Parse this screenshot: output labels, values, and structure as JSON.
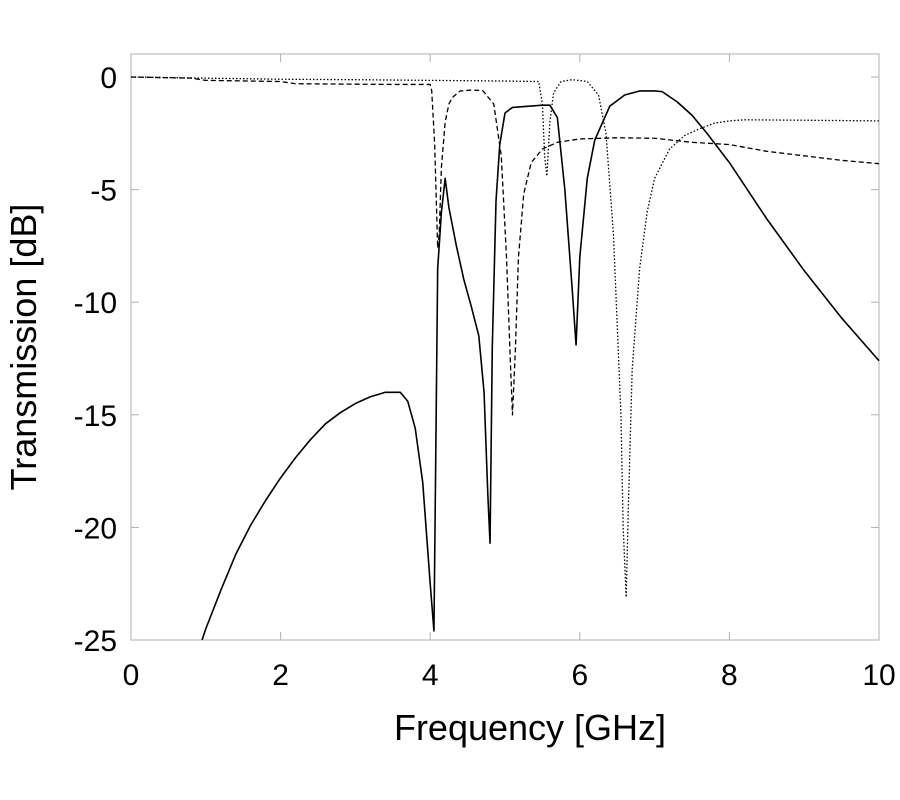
{
  "chart_data": {
    "type": "line",
    "xlabel": "Frequency [GHz]",
    "ylabel": "Transmission [dB]",
    "xlim": [
      0,
      10
    ],
    "ylim": [
      -25,
      1
    ],
    "grid": false,
    "legend": "none",
    "x_ticks": [
      {
        "value": 0,
        "label": "0"
      },
      {
        "value": 2,
        "label": "2"
      },
      {
        "value": 4,
        "label": "4"
      },
      {
        "value": 6,
        "label": "6"
      },
      {
        "value": 8,
        "label": "8"
      },
      {
        "value": 10,
        "label": "10"
      }
    ],
    "y_ticks": [
      {
        "value": 0,
        "label": "0"
      },
      {
        "value": -5,
        "label": "-5"
      },
      {
        "value": -10,
        "label": "-10"
      },
      {
        "value": -15,
        "label": "-15"
      },
      {
        "value": -20,
        "label": "-20"
      },
      {
        "value": -25,
        "label": "-25"
      }
    ],
    "series": [
      {
        "style": "solid",
        "color": "#000000",
        "x": [
          0.95,
          1.0,
          1.2,
          1.4,
          1.6,
          1.8,
          2.0,
          2.2,
          2.4,
          2.6,
          2.8,
          3.0,
          3.2,
          3.4,
          3.6,
          3.7,
          3.8,
          3.9,
          4.0,
          4.05,
          4.08,
          4.1,
          4.15,
          4.2,
          4.25,
          4.35,
          4.45,
          4.55,
          4.65,
          4.72,
          4.77,
          4.8,
          4.83,
          4.88,
          4.93,
          5.0,
          5.1,
          5.3,
          5.5,
          5.6,
          5.7,
          5.8,
          5.9,
          5.95,
          6.0,
          6.1,
          6.2,
          6.4,
          6.6,
          6.8,
          7.0,
          7.1,
          7.3,
          7.5,
          7.7,
          8.0,
          8.5,
          9.0,
          9.5,
          10.0
        ],
        "y": [
          -25.0,
          -24.5,
          -22.8,
          -21.2,
          -19.9,
          -18.8,
          -17.8,
          -16.9,
          -16.1,
          -15.4,
          -14.9,
          -14.5,
          -14.2,
          -14.0,
          -14.0,
          -14.4,
          -15.6,
          -18.0,
          -22.5,
          -24.6,
          -15.0,
          -8.5,
          -6.0,
          -4.5,
          -5.8,
          -7.5,
          -9.0,
          -10.2,
          -11.5,
          -14.0,
          -18.5,
          -20.7,
          -12.0,
          -5.5,
          -3.0,
          -1.6,
          -1.35,
          -1.3,
          -1.25,
          -1.25,
          -1.8,
          -5.0,
          -9.5,
          -11.9,
          -8.0,
          -4.5,
          -2.8,
          -1.3,
          -0.8,
          -0.62,
          -0.62,
          -0.65,
          -1.1,
          -1.7,
          -2.5,
          -3.8,
          -6.3,
          -8.6,
          -10.7,
          -12.6
        ]
      },
      {
        "style": "dashed",
        "color": "#000000",
        "x": [
          0,
          0.8,
          1.0,
          2.0,
          2.2,
          3.5,
          4.0,
          4.02,
          4.06,
          4.1,
          4.12,
          4.15,
          4.2,
          4.25,
          4.3,
          4.4,
          4.55,
          4.7,
          4.85,
          4.95,
          5.02,
          5.07,
          5.1,
          5.14,
          5.18,
          5.25,
          5.35,
          5.5,
          5.7,
          6.0,
          6.5,
          7.0,
          7.5,
          8.0,
          8.5,
          9.0,
          9.5,
          10.0
        ],
        "y": [
          0,
          -0.05,
          -0.15,
          -0.2,
          -0.3,
          -0.33,
          -0.33,
          -0.6,
          -3.0,
          -7.6,
          -7.0,
          -4.0,
          -2.0,
          -1.2,
          -0.9,
          -0.62,
          -0.58,
          -0.6,
          -1.2,
          -3.5,
          -8.0,
          -12.5,
          -15.0,
          -12.0,
          -8.0,
          -5.2,
          -3.8,
          -3.2,
          -2.9,
          -2.75,
          -2.7,
          -2.72,
          -2.9,
          -3.0,
          -3.3,
          -3.5,
          -3.7,
          -3.85
        ]
      },
      {
        "style": "dotted",
        "color": "#000000",
        "x": [
          0,
          1.0,
          2.0,
          3.0,
          4.0,
          5.0,
          5.45,
          5.5,
          5.53,
          5.56,
          5.6,
          5.65,
          5.75,
          5.9,
          6.1,
          6.25,
          6.35,
          6.45,
          6.55,
          6.58,
          6.62,
          6.65,
          6.7,
          6.8,
          6.9,
          7.0,
          7.2,
          7.4,
          7.6,
          7.8,
          8.0,
          8.2,
          9.0,
          10.0
        ],
        "y": [
          0,
          -0.05,
          -0.1,
          -0.12,
          -0.15,
          -0.18,
          -0.2,
          -1.2,
          -3.5,
          -4.4,
          -2.0,
          -0.7,
          -0.2,
          -0.12,
          -0.2,
          -0.8,
          -2.5,
          -7.0,
          -15.0,
          -20.0,
          -23.1,
          -19.0,
          -13.0,
          -8.5,
          -6.0,
          -4.5,
          -3.2,
          -2.6,
          -2.3,
          -2.05,
          -1.95,
          -1.9,
          -1.92,
          -1.95
        ]
      }
    ]
  }
}
